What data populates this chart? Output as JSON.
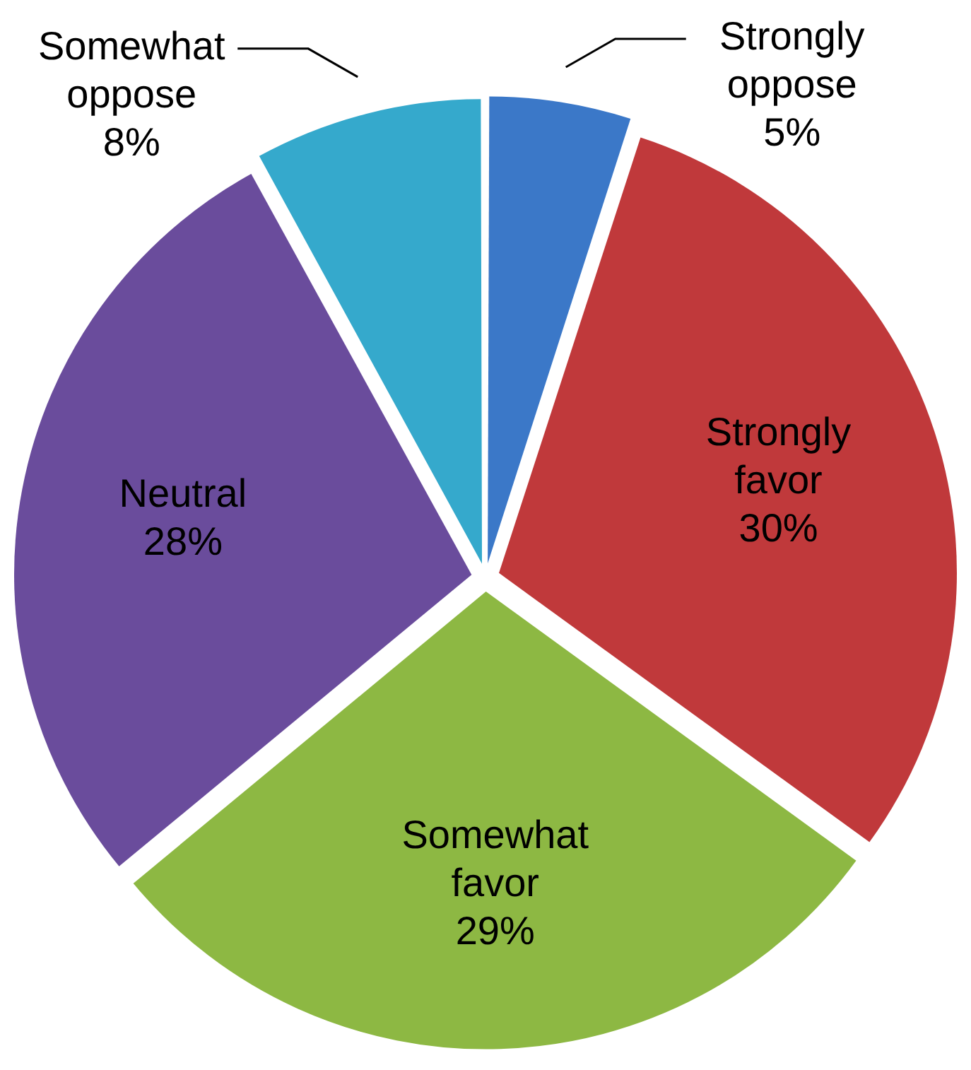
{
  "chart_data": {
    "type": "pie",
    "categories": [
      "Strongly oppose",
      "Strongly favor",
      "Somewhat favor",
      "Neutral",
      "Somewhat oppose"
    ],
    "values": [
      5,
      30,
      29,
      28,
      8
    ],
    "value_labels": [
      "5%",
      "30%",
      "29%",
      "28%",
      "8%"
    ],
    "colors": [
      "#3b78c8",
      "#c0393b",
      "#8db843",
      "#6a4c9c",
      "#35a9cc"
    ],
    "legend": false
  }
}
